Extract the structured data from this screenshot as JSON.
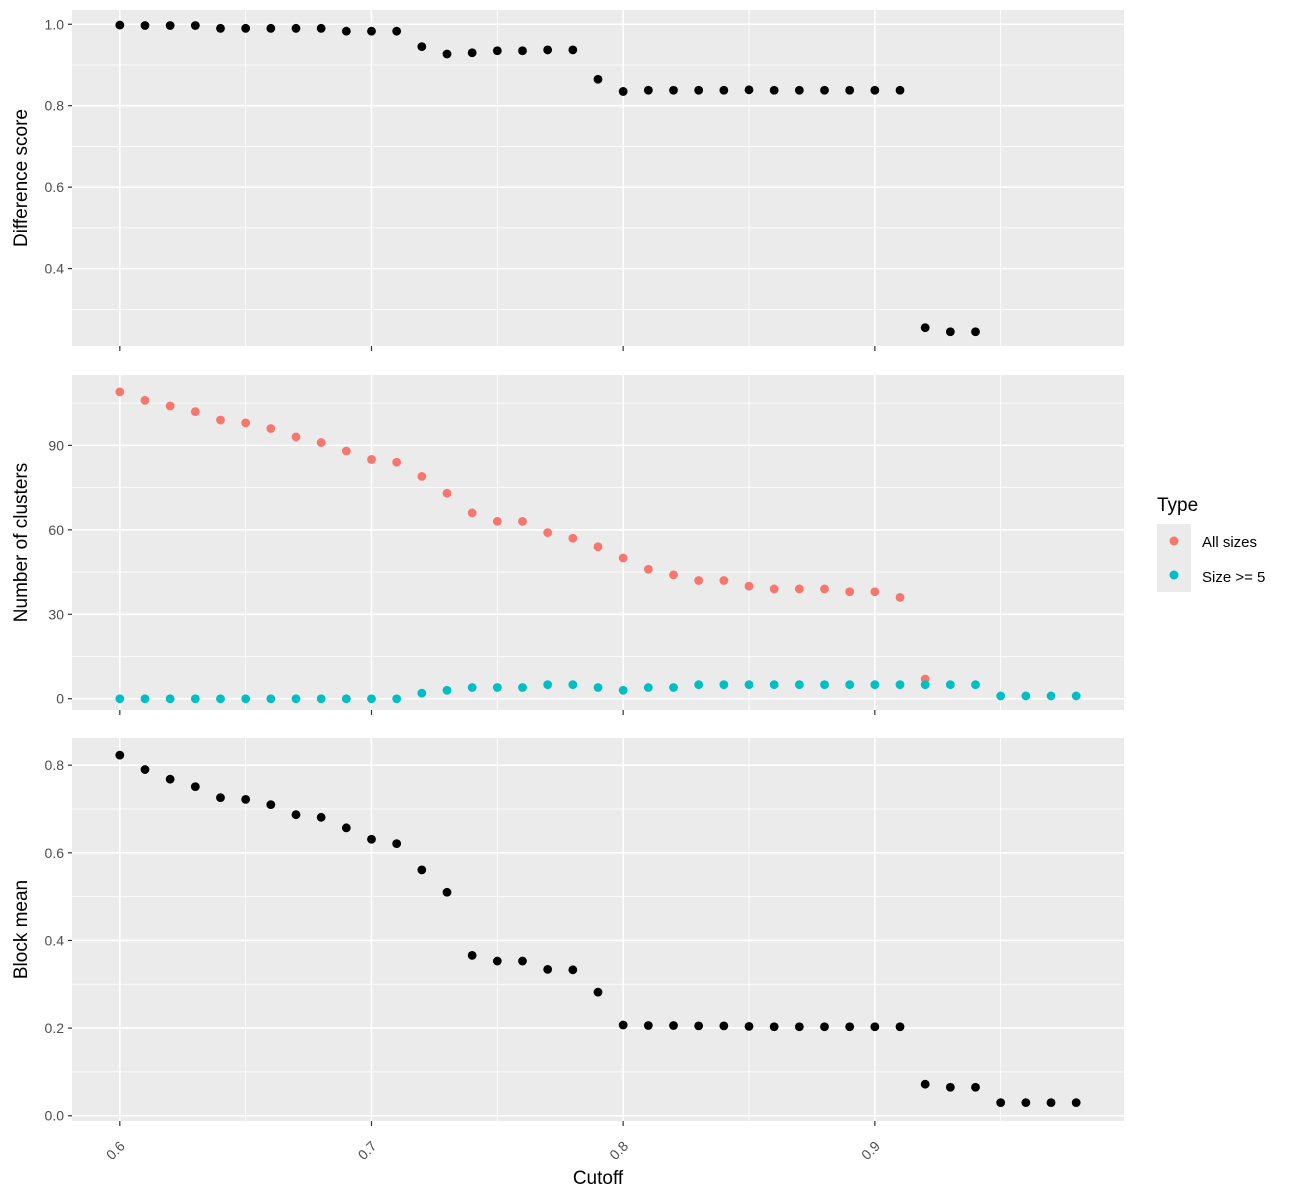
{
  "chart_data": {
    "type": "scatter",
    "xlabel": "Cutoff",
    "x_ticks": [
      "0.6",
      "0.7",
      "0.8",
      "0.9"
    ],
    "x_tick_values": [
      0.6,
      0.7,
      0.8,
      0.9
    ],
    "xlim": [
      0.581,
      0.999
    ],
    "legend": {
      "title": "Type",
      "position": "right",
      "entries": [
        {
          "label": "All sizes",
          "color": "#F8766D"
        },
        {
          "label": "Size >= 5",
          "color": "#00BFC4"
        }
      ]
    },
    "panels": [
      {
        "ylabel": "Difference score",
        "ylim": [
          0.21,
          1.035
        ],
        "y_ticks": [
          "0.4",
          "0.6",
          "0.8",
          "1.0"
        ],
        "y_tick_values": [
          0.4,
          0.6,
          0.8,
          1.0
        ],
        "series": [
          {
            "color": "#000000",
            "x": [
              0.6,
              0.61,
              0.62,
              0.63,
              0.64,
              0.65,
              0.66,
              0.67,
              0.68,
              0.69,
              0.7,
              0.71,
              0.72,
              0.73,
              0.74,
              0.75,
              0.76,
              0.77,
              0.78,
              0.79,
              0.8,
              0.81,
              0.82,
              0.83,
              0.84,
              0.85,
              0.86,
              0.87,
              0.88,
              0.89,
              0.9,
              0.91,
              0.92,
              0.93,
              0.94
            ],
            "y": [
              0.998,
              0.997,
              0.997,
              0.997,
              0.99,
              0.99,
              0.99,
              0.99,
              0.99,
              0.983,
              0.983,
              0.983,
              0.945,
              0.927,
              0.93,
              0.935,
              0.935,
              0.937,
              0.937,
              0.865,
              0.835,
              0.838,
              0.838,
              0.838,
              0.838,
              0.839,
              0.838,
              0.838,
              0.838,
              0.838,
              0.838,
              0.838,
              0.255,
              0.245,
              0.245
            ]
          }
        ]
      },
      {
        "ylabel": "Number of clusters",
        "ylim": [
          -4,
          115
        ],
        "y_ticks": [
          "0",
          "30",
          "60",
          "90"
        ],
        "y_tick_values": [
          0,
          30,
          60,
          90
        ],
        "series": [
          {
            "name": "All sizes",
            "color": "#F8766D",
            "x": [
              0.6,
              0.61,
              0.62,
              0.63,
              0.64,
              0.65,
              0.66,
              0.67,
              0.68,
              0.69,
              0.7,
              0.71,
              0.72,
              0.73,
              0.74,
              0.75,
              0.76,
              0.77,
              0.78,
              0.79,
              0.8,
              0.81,
              0.82,
              0.83,
              0.84,
              0.85,
              0.86,
              0.87,
              0.88,
              0.89,
              0.9,
              0.91,
              0.92
            ],
            "y": [
              109,
              106,
              104,
              102,
              99,
              98,
              96,
              93,
              91,
              88,
              85,
              84,
              79,
              73,
              66,
              63,
              63,
              59,
              57,
              54,
              50,
              46,
              44,
              42,
              42,
              40,
              39,
              39,
              39,
              38,
              38,
              36,
              7
            ]
          },
          {
            "name": "Size >= 5",
            "color": "#00BFC4",
            "x": [
              0.6,
              0.61,
              0.62,
              0.63,
              0.64,
              0.65,
              0.66,
              0.67,
              0.68,
              0.69,
              0.7,
              0.71,
              0.72,
              0.73,
              0.74,
              0.75,
              0.76,
              0.77,
              0.78,
              0.79,
              0.8,
              0.81,
              0.82,
              0.83,
              0.84,
              0.85,
              0.86,
              0.87,
              0.88,
              0.89,
              0.9,
              0.91,
              0.92,
              0.93,
              0.94,
              0.95,
              0.96,
              0.97,
              0.98
            ],
            "y": [
              0,
              0,
              0,
              0,
              0,
              0,
              0,
              0,
              0,
              0,
              0,
              0,
              2,
              3,
              4,
              4,
              4,
              5,
              5,
              4,
              3,
              4,
              4,
              5,
              5,
              5,
              5,
              5,
              5,
              5,
              5,
              5,
              5,
              5,
              5,
              1,
              1,
              1,
              1
            ]
          }
        ]
      },
      {
        "ylabel": "Block mean",
        "ylim": [
          -0.012,
          0.862
        ],
        "y_ticks": [
          "0.0",
          "0.2",
          "0.4",
          "0.6",
          "0.8"
        ],
        "y_tick_values": [
          0.0,
          0.2,
          0.4,
          0.6,
          0.8
        ],
        "series": [
          {
            "color": "#000000",
            "x": [
              0.6,
              0.61,
              0.62,
              0.63,
              0.64,
              0.65,
              0.66,
              0.67,
              0.68,
              0.69,
              0.7,
              0.71,
              0.72,
              0.73,
              0.74,
              0.75,
              0.76,
              0.77,
              0.78,
              0.79,
              0.8,
              0.81,
              0.82,
              0.83,
              0.84,
              0.85,
              0.86,
              0.87,
              0.88,
              0.89,
              0.9,
              0.91,
              0.92,
              0.93,
              0.94,
              0.95,
              0.96,
              0.97,
              0.98
            ],
            "y": [
              0.823,
              0.79,
              0.768,
              0.751,
              0.726,
              0.722,
              0.71,
              0.687,
              0.681,
              0.657,
              0.631,
              0.621,
              0.561,
              0.51,
              0.366,
              0.353,
              0.353,
              0.334,
              0.333,
              0.282,
              0.207,
              0.206,
              0.206,
              0.205,
              0.205,
              0.204,
              0.203,
              0.203,
              0.203,
              0.203,
              0.203,
              0.203,
              0.072,
              0.065,
              0.065,
              0.03,
              0.03,
              0.03,
              0.03
            ]
          }
        ]
      }
    ]
  }
}
